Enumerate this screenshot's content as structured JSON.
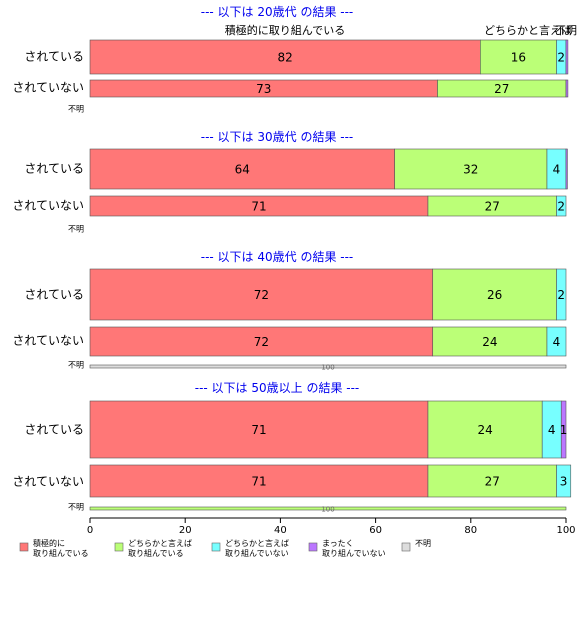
{
  "chart_data": {
    "type": "bar",
    "orientation": "horizontal",
    "stacked": true,
    "xlim": [
      0,
      100
    ],
    "x_ticks": [
      0,
      20,
      40,
      60,
      80,
      100
    ],
    "colors": [
      "#ff7777",
      "#bbff77",
      "#77ffff",
      "#bb77ff",
      "#dddddd"
    ],
    "legend": {
      "placement": "bottom",
      "entries": [
        [
          "積極的に",
          "取り組んでいる"
        ],
        [
          "どちらかと言えば",
          "取り組んでいる"
        ],
        [
          "どちらかと言えば",
          "取り組んでいない"
        ],
        [
          "まったく",
          "取り組んでいない"
        ],
        [
          "不明"
        ]
      ]
    },
    "header_labels": [
      "積極的に取り組んでいる",
      "どちらかと言えば",
      "不明"
    ],
    "panels": [
      {
        "title": "--- 以下は 20歳代 の結果 ---",
        "rows": [
          {
            "label": "されている",
            "values": [
              82,
              16,
              2,
              0.4,
              0
            ],
            "labels": [
              "82",
              "16",
              "2",
              "",
              ""
            ]
          },
          {
            "label": "されていない",
            "values": [
              73,
              27,
              0,
              0.4,
              0
            ],
            "labels": [
              "73",
              "27",
              "",
              "",
              ""
            ]
          },
          {
            "label": "不明",
            "values": [
              0,
              0,
              0,
              0,
              0
            ],
            "labels": [
              "",
              "",
              "",
              "",
              ""
            ]
          }
        ]
      },
      {
        "title": "--- 以下は 30歳代 の結果 ---",
        "rows": [
          {
            "label": "されている",
            "values": [
              64,
              32,
              4,
              0.3,
              0
            ],
            "labels": [
              "64",
              "32",
              "4",
              "",
              ""
            ]
          },
          {
            "label": "されていない",
            "values": [
              71,
              27,
              2,
              0,
              0
            ],
            "labels": [
              "71",
              "27",
              "2",
              "",
              ""
            ]
          },
          {
            "label": "不明",
            "values": [
              0,
              0,
              0,
              0,
              0
            ],
            "labels": [
              "",
              "",
              "",
              "",
              ""
            ]
          }
        ]
      },
      {
        "title": "--- 以下は 40歳代 の結果 ---",
        "rows": [
          {
            "label": "されている",
            "values": [
              72,
              26,
              2,
              0,
              0
            ],
            "labels": [
              "72",
              "26",
              "2",
              "",
              ""
            ]
          },
          {
            "label": "されていない",
            "values": [
              72,
              24,
              4,
              0,
              0
            ],
            "labels": [
              "72",
              "24",
              "4",
              "",
              ""
            ]
          },
          {
            "label": "不明",
            "values": [
              0,
              0,
              0,
              0,
              100
            ],
            "labels": [
              "",
              "",
              "",
              "",
              "100"
            ]
          }
        ]
      },
      {
        "title": "--- 以下は 50歳以上 の結果 ---",
        "rows": [
          {
            "label": "されている",
            "values": [
              71,
              24,
              4,
              1,
              0
            ],
            "labels": [
              "71",
              "24",
              "4",
              "1",
              ""
            ]
          },
          {
            "label": "されていない",
            "values": [
              71,
              27,
              3,
              0,
              0
            ],
            "labels": [
              "71",
              "27",
              "3",
              "",
              ""
            ]
          },
          {
            "label": "不明",
            "values": [
              0,
              100,
              0,
              0,
              0
            ],
            "labels": [
              "",
              "100",
              "",
              "",
              ""
            ]
          }
        ]
      }
    ]
  }
}
